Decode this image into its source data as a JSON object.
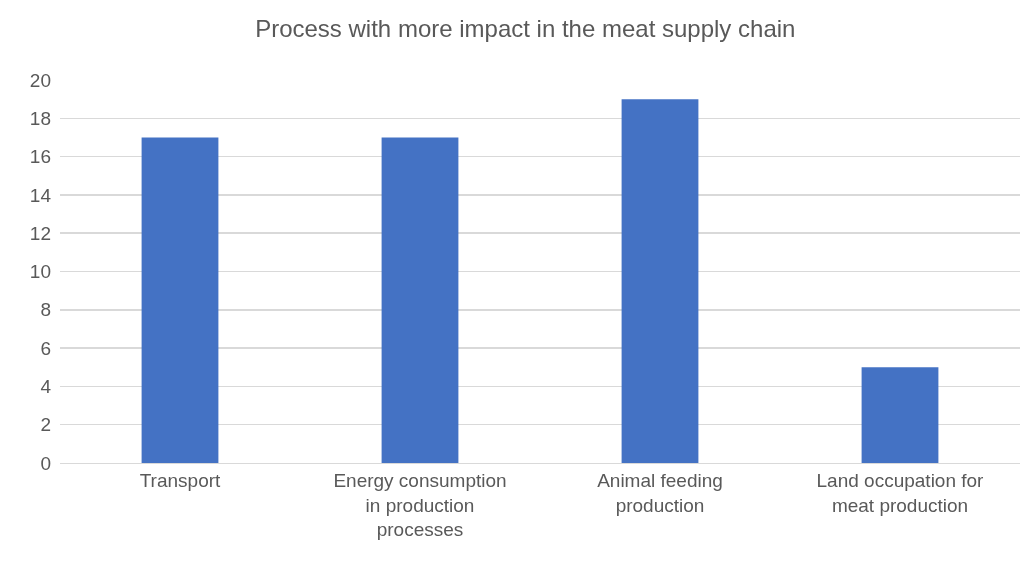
{
  "chart_data": {
    "type": "bar",
    "title": "Process with more impact in the meat supply chain",
    "categories": [
      "Transport",
      "Energy consumption in production processes",
      "Animal feeding production",
      "Land occupation for meat production"
    ],
    "values": [
      17,
      17,
      19,
      5
    ],
    "color": "#4472c4",
    "ylim": [
      0,
      20
    ],
    "yticks": [
      0,
      2,
      4,
      6,
      8,
      10,
      12,
      14,
      16,
      18,
      20
    ],
    "grid": "y"
  }
}
